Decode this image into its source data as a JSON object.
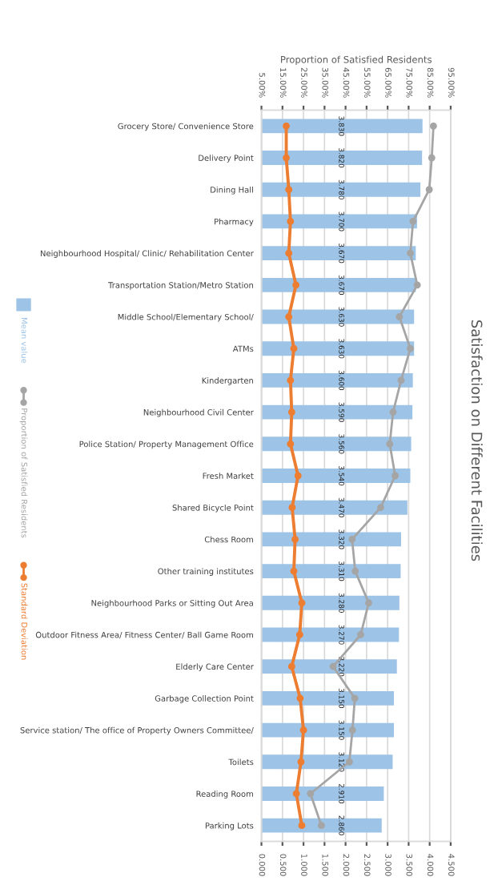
{
  "chart_data": {
    "type": "bar",
    "orientation": "horizontal",
    "title": "Satisfaction on Different Facilities",
    "x2label": "Proportion of Satisfied Residents",
    "categories": [
      "Grocery Store/ Convenience Store",
      "Delivery Point",
      "Dining Hall",
      "Pharmacy",
      "Neighbourhood Hospital/ Clinic/ Rehabilitation Center",
      "Transportation Station/Metro Station",
      "Middle School/Elementary School/",
      "ATMs",
      "Kindergarten",
      "Neighbourhood Civil Center",
      "Police Station/ Property Management Office",
      "Fresh Market",
      "Shared Bicycle Point",
      "Chess Room",
      "Other training institutes",
      "Neighbourhood Parks or Sitting Out Area",
      "Outdoor Fitness Area/ Fitness Center/ Ball Game Room",
      "Elderly Care Center",
      "Garbage Collection Point",
      "Service station/ The office of Property Owners Committee/",
      "Toilets",
      "Reading Room",
      "Parking Lots"
    ],
    "series": [
      {
        "name": "Mean value",
        "color": "#9dc3e6",
        "values": [
          3.83,
          3.82,
          3.78,
          3.7,
          3.67,
          3.67,
          3.63,
          3.63,
          3.6,
          3.59,
          3.56,
          3.54,
          3.47,
          3.32,
          3.31,
          3.28,
          3.27,
          3.22,
          3.15,
          3.15,
          3.12,
          2.91,
          2.86
        ],
        "value_labels": [
          "3.830",
          "3.820",
          "3.780",
          "3.700",
          "3.670",
          "3.670",
          "3.630",
          "3.630",
          "3.600",
          "3.590",
          "3.560",
          "3.540",
          "3.470",
          "3.320",
          "3.310",
          "3.280",
          "3.270",
          "3.220",
          "3.150",
          "3.150",
          "3.120",
          "2.910",
          "2.860"
        ]
      },
      {
        "name": "Proportion of Satisfied Residents",
        "type": "line",
        "axis": "x2",
        "color": "#a5a5a5",
        "marker": "circle",
        "values": [
          86.8,
          86.0,
          84.8,
          77.1,
          75.8,
          79.1,
          70.6,
          75.8,
          71.4,
          67.6,
          66.0,
          68.6,
          61.7,
          48.1,
          49.6,
          56.0,
          52.2,
          39.1,
          49.4,
          48.3,
          46.8,
          28.3,
          33.5
        ]
      },
      {
        "name": "Standard Deviation",
        "type": "line",
        "color": "#ed7d31",
        "marker": "circle",
        "values": [
          0.59,
          0.59,
          0.65,
          0.69,
          0.65,
          0.82,
          0.65,
          0.77,
          0.69,
          0.72,
          0.69,
          0.87,
          0.73,
          0.8,
          0.77,
          0.96,
          0.91,
          0.72,
          0.92,
          1.0,
          0.94,
          0.83,
          0.96
        ]
      }
    ],
    "xlim": [
      0,
      4.5
    ],
    "xticks": [
      {
        "value": 0,
        "label": "0.000"
      },
      {
        "value": 0.5,
        "label": "0.500"
      },
      {
        "value": 1,
        "label": "1.000"
      },
      {
        "value": 1.5,
        "label": "1.500"
      },
      {
        "value": 2,
        "label": "2.000"
      },
      {
        "value": 2.5,
        "label": "2.500"
      },
      {
        "value": 3,
        "label": "3.000"
      },
      {
        "value": 3.5,
        "label": "3.500"
      },
      {
        "value": 4,
        "label": "4.000"
      },
      {
        "value": 4.5,
        "label": "4.500"
      }
    ],
    "x2lim": [
      5,
      95
    ],
    "x2ticks": [
      {
        "value": 5,
        "label": "5.00%"
      },
      {
        "value": 15,
        "label": "15.00%"
      },
      {
        "value": 25,
        "label": "25.00%"
      },
      {
        "value": 35,
        "label": "35.00%"
      },
      {
        "value": 45,
        "label": "45.00%"
      },
      {
        "value": 55,
        "label": "55.00%"
      },
      {
        "value": 65,
        "label": "65.00%"
      },
      {
        "value": 75,
        "label": "75.00%"
      },
      {
        "value": 85,
        "label": "85.00%"
      },
      {
        "value": 95,
        "label": "95.00%"
      }
    ],
    "grid": "x",
    "legend": "left"
  }
}
